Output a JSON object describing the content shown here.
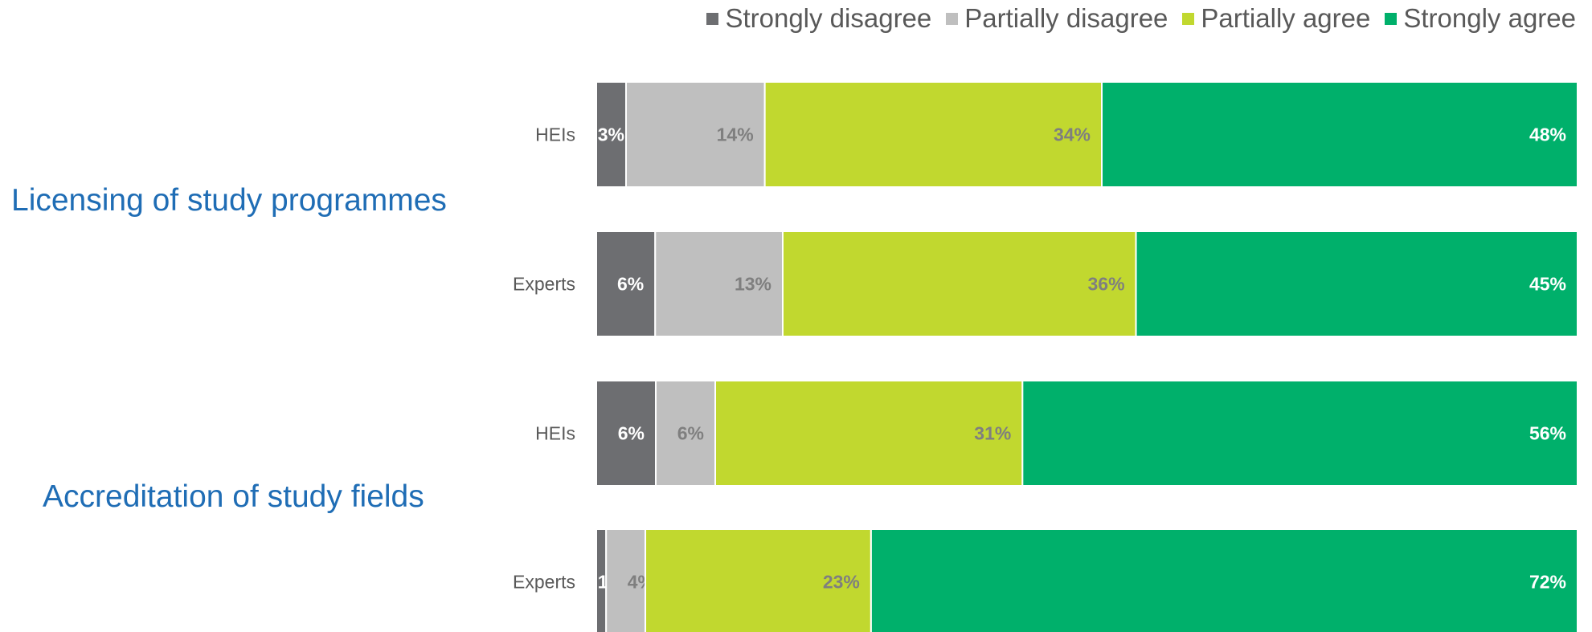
{
  "chart_data": {
    "type": "bar",
    "orientation": "horizontal",
    "stacked": true,
    "percent_scale": true,
    "grid": false,
    "legend_position": "top-right",
    "groups": [
      {
        "label": "Licensing of study programmes",
        "rows": [
          {
            "category": "HEIs",
            "values": [
              3,
              14,
              34,
              48
            ]
          },
          {
            "category": "Experts",
            "values": [
              6,
              13,
              36,
              45
            ]
          }
        ]
      },
      {
        "label": "Accreditation of study fields",
        "rows": [
          {
            "category": "HEIs",
            "values": [
              6,
              6,
              31,
              56
            ]
          },
          {
            "category": "Experts",
            "values": [
              1,
              4,
              23,
              72
            ]
          }
        ]
      }
    ],
    "series": [
      {
        "name": "Strongly disagree",
        "color": "#6d6e71",
        "label_color": "#ffffff"
      },
      {
        "name": "Partially disagree",
        "color": "#bfbfbf",
        "label_color": "#7f7f7f"
      },
      {
        "name": "Partially agree",
        "color": "#c1d82f",
        "label_color": "#7f7f7f"
      },
      {
        "name": "Strongly agree",
        "color": "#00b06b",
        "label_color": "#ffffff"
      }
    ],
    "value_suffix": "%"
  }
}
